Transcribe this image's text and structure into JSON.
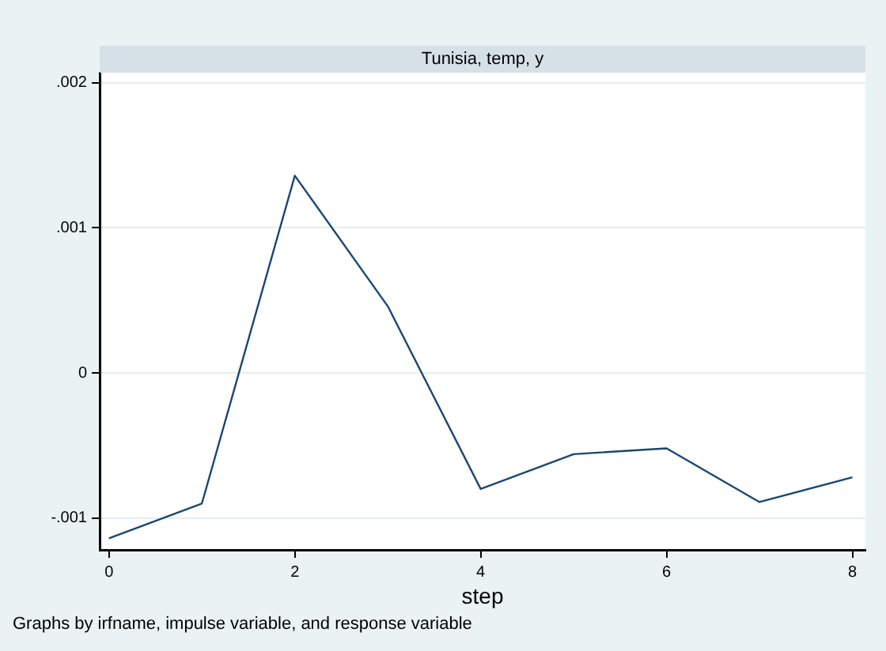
{
  "chart_data": {
    "type": "line",
    "title": "Tunisia, temp, y",
    "xlabel": "step",
    "annotations": [
      "Graphs by irfname, impulse variable, and response variable"
    ],
    "x": [
      0,
      1,
      2,
      3,
      4,
      5,
      6,
      7,
      8
    ],
    "series": [
      {
        "color": "#1a476f",
        "values": [
          -0.00114,
          -0.0009,
          0.00136,
          0.00046,
          -0.0008,
          -0.00056,
          -0.00052,
          -0.00089,
          -0.00072
        ]
      }
    ],
    "xlim": [
      -0.1,
      8.14
    ],
    "xticks": [
      0,
      2,
      4,
      6,
      8
    ],
    "ylim": [
      -0.00122,
      0.00207
    ],
    "yticks": [
      {
        "value": -0.001,
        "label": "-.001"
      },
      0,
      {
        "value": 0.001,
        "label": ".001"
      },
      {
        "value": 0.002,
        "label": ".002"
      }
    ],
    "grid": "y",
    "legend": false,
    "marker": "none",
    "line_style": "solid"
  }
}
